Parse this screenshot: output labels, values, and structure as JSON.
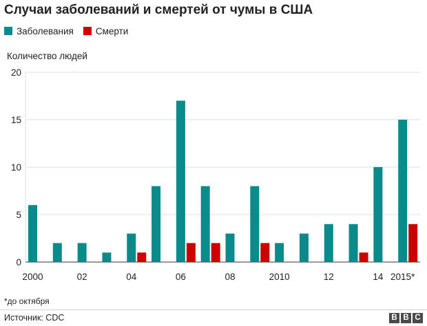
{
  "chart_data": {
    "type": "bar",
    "title": "Случаи заболеваний и смертей от чумы в США",
    "ylabel": "Количество людей",
    "xlabel": "",
    "ylim": [
      0,
      20
    ],
    "yticks": [
      0,
      5,
      10,
      15,
      20
    ],
    "grid": true,
    "legend_position": "top-left",
    "categories": [
      "2000",
      "2001",
      "2002",
      "2003",
      "2004",
      "2005",
      "2006",
      "2007",
      "2008",
      "2009",
      "2010",
      "2011",
      "2012",
      "2013",
      "2014",
      "2015"
    ],
    "tick_labels": [
      "2000",
      "",
      "02",
      "",
      "04",
      "",
      "06",
      "",
      "08",
      "",
      "2010",
      "",
      "12",
      "",
      "14",
      "2015*"
    ],
    "series": [
      {
        "name": "Заболевания",
        "color": "#0a8a8a",
        "values": [
          6,
          2,
          2,
          1,
          3,
          8,
          17,
          8,
          3,
          8,
          2,
          3,
          4,
          4,
          10,
          15
        ]
      },
      {
        "name": "Смерти",
        "color": "#cc0000",
        "values": [
          0,
          0,
          0,
          0,
          1,
          0,
          2,
          2,
          0,
          2,
          0,
          0,
          0,
          1,
          0,
          4
        ]
      }
    ]
  },
  "footnote": "*до октября",
  "source": "Источник: CDC",
  "logo": [
    "B",
    "B",
    "C"
  ]
}
